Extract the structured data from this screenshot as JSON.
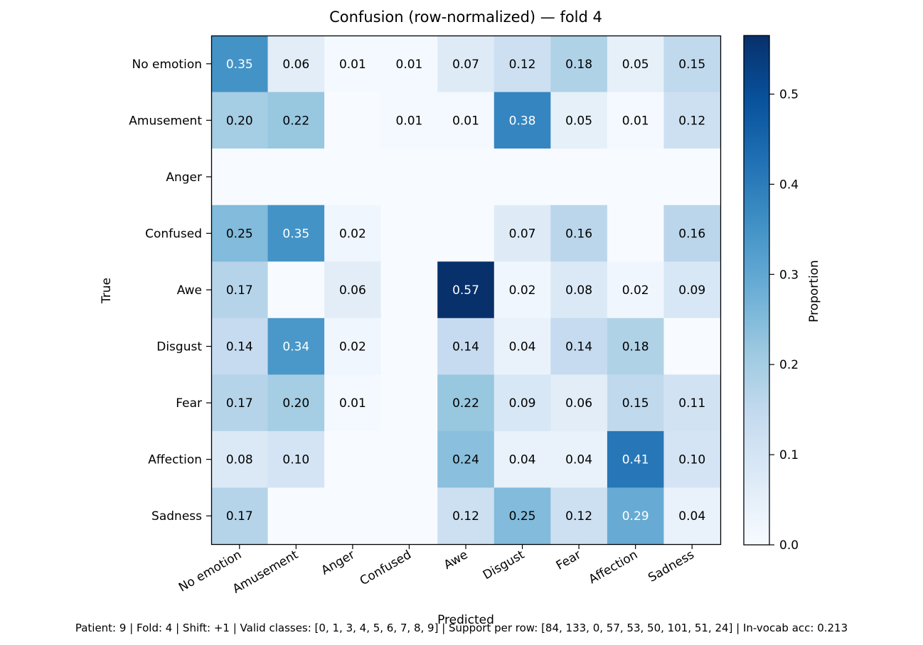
{
  "chart_data": {
    "type": "heatmap",
    "title": "Confusion (row-normalized) — fold 4",
    "xlabel": "Predicted",
    "ylabel": "True",
    "x_categories": [
      "No emotion",
      "Amusement",
      "Anger",
      "Confused",
      "Awe",
      "Disgust",
      "Fear",
      "Affection",
      "Sadness"
    ],
    "y_categories": [
      "No emotion",
      "Amusement",
      "Anger",
      "Confused",
      "Awe",
      "Disgust",
      "Fear",
      "Affection",
      "Sadness"
    ],
    "values": [
      [
        0.35,
        0.06,
        0.01,
        0.01,
        0.07,
        0.12,
        0.18,
        0.05,
        0.15
      ],
      [
        0.2,
        0.22,
        0.0,
        0.01,
        0.01,
        0.38,
        0.05,
        0.01,
        0.12
      ],
      [
        0.0,
        0.0,
        0.0,
        0.0,
        0.0,
        0.0,
        0.0,
        0.0,
        0.0
      ],
      [
        0.25,
        0.35,
        0.02,
        0.0,
        0.0,
        0.07,
        0.16,
        0.0,
        0.16
      ],
      [
        0.17,
        0.0,
        0.06,
        0.0,
        0.57,
        0.02,
        0.08,
        0.02,
        0.09
      ],
      [
        0.14,
        0.34,
        0.02,
        0.0,
        0.14,
        0.04,
        0.14,
        0.18,
        0.0
      ],
      [
        0.17,
        0.2,
        0.01,
        0.0,
        0.22,
        0.09,
        0.06,
        0.15,
        0.11
      ],
      [
        0.08,
        0.1,
        0.0,
        0.0,
        0.24,
        0.04,
        0.04,
        0.41,
        0.1
      ],
      [
        0.17,
        0.0,
        0.0,
        0.0,
        0.12,
        0.25,
        0.12,
        0.29,
        0.04
      ]
    ],
    "value_format": "0.00",
    "zero_labels_hidden": true,
    "colormap": "Blues",
    "vmin": 0,
    "vmax": 0.565,
    "colorbar": {
      "label": "Proportion",
      "ticks": [
        0.0,
        0.1,
        0.2,
        0.3,
        0.4,
        0.5
      ],
      "tick_labels": [
        "0.0",
        "0.1",
        "0.2",
        "0.3",
        "0.4",
        "0.5"
      ]
    },
    "grid": false,
    "label_color_dark": "#000000",
    "label_color_light": "#ffffff"
  },
  "footer": "Patient: 9 | Fold: 4 | Shift: +1 | Valid classes: [0, 1, 3, 4, 5, 6, 7, 8, 9] | Support per row: [84, 133, 0, 57, 53, 50, 101, 51, 24] | In-vocab acc: 0.213"
}
